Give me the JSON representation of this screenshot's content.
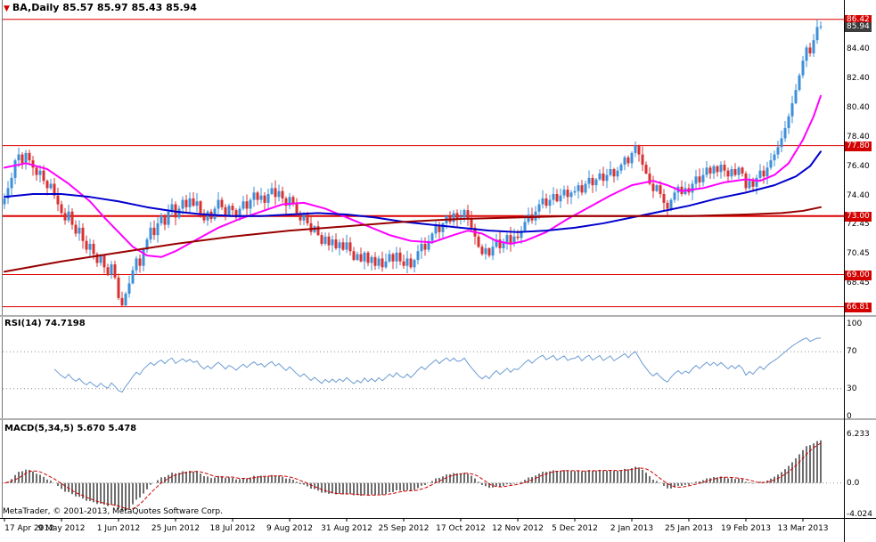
{
  "window": {
    "title": "BA,Daily 85.57 85.97 85.43 85.94",
    "symbol_icon": "▼"
  },
  "footer": {
    "copyright": "MetaTrader, © 2001-2013, MetaQuotes Software Corp."
  },
  "colors": {
    "up_candle": "#3e8fd8",
    "down_candle": "#d93030",
    "ma_fast": "#ff00ff",
    "ma_mid": "#0000cd",
    "ma_long": "#990000",
    "sr_line": "#dd0000",
    "rsi_line": "#6b9bd2",
    "macd_hist": "#6e6e6e",
    "macd_signal": "#d00000",
    "badge_red": "#d40000",
    "badge_dark": "#3c3c3c"
  },
  "chart_data": {
    "type": "candlestick",
    "symbol": "BA",
    "timeframe": "Daily",
    "last_ohlc": {
      "open": 85.57,
      "high": 85.97,
      "low": 85.43,
      "close": 85.94
    },
    "x_labels": [
      {
        "index": 0,
        "label": "17 Apr 2012"
      },
      {
        "index": 16,
        "label": "9 May 2012"
      },
      {
        "index": 32,
        "label": "1 Jun 2012"
      },
      {
        "index": 48,
        "label": "25 Jun 2012"
      },
      {
        "index": 64,
        "label": "18 Jul 2012"
      },
      {
        "index": 80,
        "label": "9 Aug 2012"
      },
      {
        "index": 96,
        "label": "31 Aug 2012"
      },
      {
        "index": 112,
        "label": "25 Sep 2012"
      },
      {
        "index": 128,
        "label": "17 Oct 2012"
      },
      {
        "index": 144,
        "label": "12 Nov 2012"
      },
      {
        "index": 160,
        "label": "5 Dec 2012"
      },
      {
        "index": 176,
        "label": "2 Jan 2013"
      },
      {
        "index": 192,
        "label": "25 Jan 2013"
      },
      {
        "index": 208,
        "label": "19 Feb 2013"
      },
      {
        "index": 224,
        "label": "13 Mar 2013"
      }
    ],
    "main_panel": {
      "ylim": [
        66.3,
        87.5
      ],
      "yticks": [
        "84.40",
        "82.40",
        "80.40",
        "78.40",
        "76.40",
        "74.40",
        "72.45",
        "70.45",
        "68.45"
      ],
      "price_badges": [
        {
          "value": "86.42",
          "style": "red"
        },
        {
          "value": "85.94",
          "style": "dark"
        },
        {
          "value": "77.80",
          "style": "red"
        },
        {
          "value": "73.00",
          "style": "red"
        },
        {
          "value": "69.00",
          "style": "red"
        },
        {
          "value": "66.81",
          "style": "red"
        }
      ],
      "hlines": [
        {
          "price": 86.42,
          "width": 1
        },
        {
          "price": 77.8,
          "width": 1
        },
        {
          "price": 73.0,
          "width": 2
        },
        {
          "price": 69.0,
          "width": 1
        },
        {
          "price": 66.81,
          "width": 1
        }
      ],
      "closes": [
        74.2,
        74.9,
        75.6,
        76.8,
        77.2,
        76.6,
        77.3,
        76.8,
        76.3,
        75.8,
        76.1,
        75.4,
        74.9,
        75.2,
        74.4,
        73.8,
        73.2,
        72.7,
        73.3,
        72.4,
        71.8,
        72.2,
        71.3,
        70.7,
        71.1,
        70.4,
        69.8,
        70.3,
        69.5,
        69.0,
        69.7,
        68.8,
        67.4,
        66.9,
        67.7,
        68.4,
        69.3,
        70.1,
        69.6,
        70.7,
        71.4,
        72.2,
        71.7,
        72.5,
        73.0,
        72.4,
        73.3,
        73.8,
        72.9,
        73.5,
        74.1,
        73.6,
        74.2,
        73.7,
        74.0,
        73.2,
        72.7,
        73.3,
        72.8,
        73.5,
        74.1,
        73.6,
        73.0,
        73.7,
        73.4,
        72.9,
        73.5,
        74.0,
        73.5,
        74.1,
        74.6,
        74.1,
        74.4,
        73.9,
        74.5,
        74.9,
        74.3,
        74.7,
        74.2,
        73.7,
        74.3,
        73.8,
        73.2,
        72.7,
        73.1,
        72.5,
        71.9,
        72.3,
        71.7,
        71.1,
        71.6,
        71.0,
        71.4,
        70.8,
        71.2,
        70.7,
        71.2,
        70.6,
        70.0,
        70.4,
        69.9,
        70.5,
        69.8,
        70.2,
        69.6,
        70.1,
        69.5,
        69.9,
        70.4,
        69.9,
        70.5,
        69.9,
        69.6,
        70.1,
        69.5,
        70.0,
        70.6,
        71.1,
        70.7,
        71.3,
        71.8,
        72.4,
        71.9,
        72.5,
        73.0,
        72.6,
        73.2,
        72.8,
        72.9,
        73.4,
        72.8,
        72.2,
        71.6,
        70.9,
        70.4,
        70.8,
        70.3,
        70.9,
        71.4,
        70.8,
        71.2,
        71.7,
        71.1,
        71.6,
        71.5,
        72.0,
        72.6,
        73.1,
        72.7,
        73.3,
        73.8,
        74.2,
        73.7,
        74.1,
        74.5,
        74.0,
        74.4,
        74.8,
        74.3,
        74.6,
        74.7,
        75.1,
        74.6,
        75.2,
        75.6,
        75.1,
        75.5,
        75.9,
        75.4,
        75.8,
        76.2,
        75.7,
        76.1,
        76.5,
        77.0,
        76.6,
        77.3,
        77.8,
        77.2,
        76.5,
        75.9,
        75.2,
        74.7,
        75.1,
        74.5,
        73.9,
        73.5,
        74.1,
        74.6,
        75.0,
        74.5,
        74.9,
        74.6,
        75.2,
        75.7,
        75.3,
        75.8,
        76.3,
        75.9,
        76.4,
        76.0,
        76.5,
        76.1,
        75.7,
        76.2,
        75.8,
        76.3,
        75.9,
        74.9,
        75.4,
        75.0,
        75.6,
        76.1,
        75.7,
        76.3,
        76.8,
        77.2,
        77.7,
        78.3,
        79.0,
        79.8,
        80.7,
        81.6,
        82.6,
        83.6,
        84.5,
        84.1,
        85.0,
        85.9,
        85.94
      ],
      "moving_averages": [
        {
          "name": "fast-magenta",
          "color_key": "ma_fast",
          "anchors": [
            [
              0,
              76.3
            ],
            [
              6,
              76.6
            ],
            [
              12,
              76.2
            ],
            [
              18,
              75.2
            ],
            [
              24,
              74.0
            ],
            [
              28,
              72.9
            ],
            [
              32,
              71.9
            ],
            [
              36,
              70.9
            ],
            [
              40,
              70.3
            ],
            [
              44,
              70.2
            ],
            [
              48,
              70.6
            ],
            [
              54,
              71.4
            ],
            [
              60,
              72.2
            ],
            [
              66,
              72.8
            ],
            [
              72,
              73.3
            ],
            [
              78,
              73.8
            ],
            [
              84,
              73.9
            ],
            [
              90,
              73.5
            ],
            [
              96,
              72.9
            ],
            [
              102,
              72.3
            ],
            [
              108,
              71.7
            ],
            [
              114,
              71.3
            ],
            [
              120,
              71.2
            ],
            [
              126,
              71.7
            ],
            [
              130,
              72.0
            ],
            [
              134,
              71.8
            ],
            [
              138,
              71.3
            ],
            [
              142,
              71.1
            ],
            [
              146,
              71.3
            ],
            [
              152,
              71.9
            ],
            [
              158,
              72.8
            ],
            [
              164,
              73.6
            ],
            [
              170,
              74.4
            ],
            [
              176,
              75.1
            ],
            [
              182,
              75.4
            ],
            [
              186,
              75.1
            ],
            [
              190,
              74.7
            ],
            [
              196,
              74.9
            ],
            [
              202,
              75.3
            ],
            [
              208,
              75.5
            ],
            [
              212,
              75.4
            ],
            [
              216,
              75.8
            ],
            [
              220,
              76.6
            ],
            [
              224,
              78.2
            ],
            [
              227,
              79.8
            ],
            [
              229,
              81.2
            ]
          ]
        },
        {
          "name": "mid-blue",
          "color_key": "ma_mid",
          "anchors": [
            [
              0,
              74.3
            ],
            [
              8,
              74.5
            ],
            [
              16,
              74.5
            ],
            [
              24,
              74.3
            ],
            [
              32,
              74.0
            ],
            [
              40,
              73.6
            ],
            [
              48,
              73.3
            ],
            [
              56,
              73.1
            ],
            [
              64,
              73.0
            ],
            [
              72,
              73.0
            ],
            [
              80,
              73.1
            ],
            [
              88,
              73.2
            ],
            [
              96,
              73.1
            ],
            [
              104,
              72.9
            ],
            [
              112,
              72.6
            ],
            [
              120,
              72.4
            ],
            [
              128,
              72.2
            ],
            [
              136,
              72.0
            ],
            [
              144,
              71.9
            ],
            [
              152,
              72.0
            ],
            [
              160,
              72.2
            ],
            [
              168,
              72.5
            ],
            [
              176,
              72.9
            ],
            [
              184,
              73.3
            ],
            [
              192,
              73.7
            ],
            [
              200,
              74.2
            ],
            [
              208,
              74.6
            ],
            [
              216,
              75.1
            ],
            [
              222,
              75.7
            ],
            [
              226,
              76.4
            ],
            [
              229,
              77.4
            ]
          ]
        },
        {
          "name": "long-darkred",
          "color_key": "ma_long",
          "anchors": [
            [
              0,
              69.2
            ],
            [
              16,
              69.9
            ],
            [
              32,
              70.5
            ],
            [
              48,
              71.1
            ],
            [
              64,
              71.6
            ],
            [
              80,
              72.0
            ],
            [
              96,
              72.3
            ],
            [
              112,
              72.6
            ],
            [
              128,
              72.8
            ],
            [
              144,
              72.9
            ],
            [
              160,
              73.0
            ],
            [
              176,
              73.0
            ],
            [
              192,
              73.0
            ],
            [
              208,
              73.1
            ],
            [
              218,
              73.2
            ],
            [
              224,
              73.35
            ],
            [
              229,
              73.6
            ]
          ]
        }
      ]
    },
    "rsi_panel": {
      "label": "RSI(14) 74.7198",
      "period": 14,
      "last_value": 74.7198,
      "levels": [
        70,
        30
      ],
      "yticks": [
        "100",
        "70",
        "30",
        "0"
      ],
      "ylim": [
        0,
        100
      ]
    },
    "macd_panel": {
      "label": "MACD(5,34,5) 5.670 5.478",
      "fast": 5,
      "slow": 34,
      "signal": 5,
      "last_macd": 5.67,
      "last_signal": 5.478,
      "yticks": [
        "6.233",
        "0.0",
        "-4.024"
      ],
      "ylim": [
        -4.024,
        6.233
      ]
    }
  }
}
